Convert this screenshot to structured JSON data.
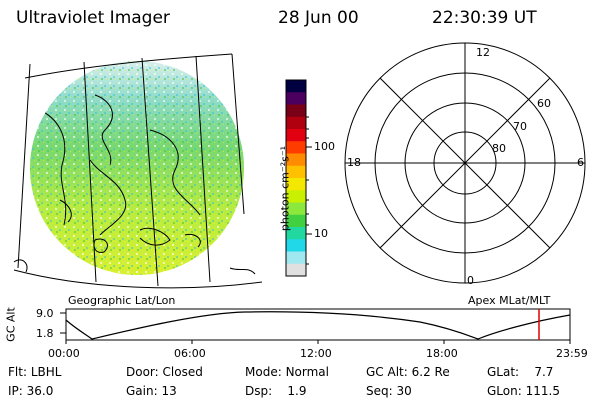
{
  "header": {
    "instrument": "Ultraviolet Imager",
    "date": "28 Jun 00",
    "time": "22:30:39 UT"
  },
  "colorbar": {
    "label": "photon cm⁻²s⁻¹",
    "ticks": [
      "100",
      "10"
    ],
    "colors": [
      "#000040",
      "#4b0060",
      "#7a0018",
      "#b00010",
      "#e00010",
      "#ff3c00",
      "#ff8c00",
      "#ffc000",
      "#f5e800",
      "#c8f000",
      "#8ce83c",
      "#40d040",
      "#20d8a0",
      "#20d8e8",
      "#a0e8f0",
      "#e0e0e0"
    ]
  },
  "left_panel": {
    "caption": "Geographic Lat/Lon"
  },
  "right_panel": {
    "caption": "Apex MLat/MLT",
    "mlt_labels": {
      "top": "12",
      "left": "18",
      "right": "6",
      "bottom": "0"
    },
    "mlat_labels": [
      "60",
      "70",
      "80"
    ]
  },
  "altitude_plot": {
    "ylabel": "GC Alt",
    "y_ticks": [
      "9.0",
      "1.8"
    ],
    "x_ticks": [
      "00:00",
      "06:00",
      "12:00",
      "18:00",
      "23:59"
    ],
    "marker_color": "#e00000"
  },
  "info": {
    "row1": [
      {
        "label": "Flt:",
        "value": "LBHL"
      },
      {
        "label": "Door:",
        "value": "Closed"
      },
      {
        "label": "Mode:",
        "value": "Normal"
      },
      {
        "label": "GC Alt:",
        "value": "6.2 Re"
      },
      {
        "label": "GLat:",
        "value": "7.7"
      }
    ],
    "row2": [
      {
        "label": "IP:",
        "value": "36.0"
      },
      {
        "label": "Gain:",
        "value": "13"
      },
      {
        "label": "Dsp:",
        "value": "1.9"
      },
      {
        "label": "Seq:",
        "value": "30"
      },
      {
        "label": "GLon:",
        "value": "111.5"
      }
    ]
  }
}
